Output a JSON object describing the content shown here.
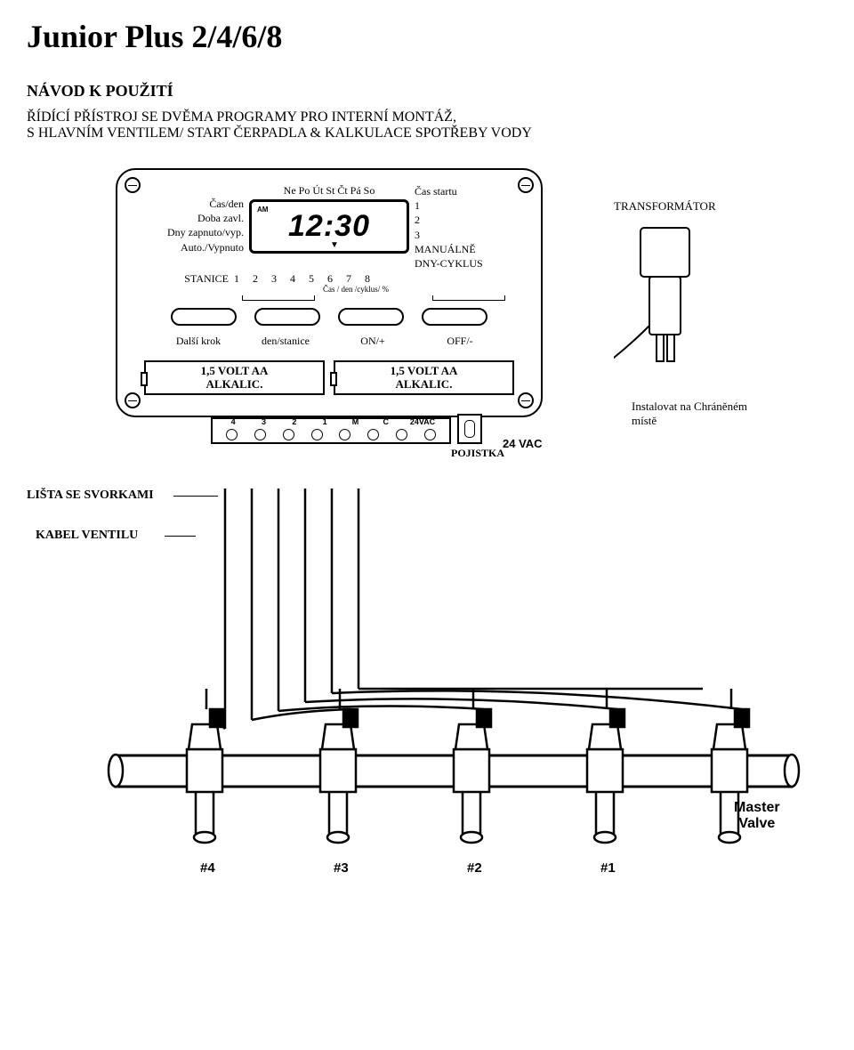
{
  "title": "Junior Plus 2/4/6/8",
  "subtitle1": "NÁVOD K POUŽITÍ",
  "subtitle2": "ŘÍDÍCÍ PŘÍSTROJ SE DVĚMA PROGRAMY PRO INTERNÍ MONTÁŽ,\nS HLAVNÍM VENTILEM/ START ČERPADLA & KALKULACE SPOTŘEBY VODY",
  "controller": {
    "days_top": "Ne Po Út St Čt Pá So",
    "left_labels": {
      "l1": "Čas/den",
      "l2": "Doba zavl.",
      "l3": "Dny  zapnuto/vyp.",
      "l4": "Auto./Vypnuto"
    },
    "right_labels": {
      "r0": "Čas startu",
      "r1": "1",
      "r2": "2",
      "r3": "3",
      "r4": "MANUÁLNĚ",
      "r5": "DNY-CYKLUS"
    },
    "lcd": {
      "am": "AM",
      "time": "12:30"
    },
    "stanice_label": "STANICE",
    "stanice_nums": "1  2  3  4  5  6  7  8",
    "cas_den_cyklus": "Čas / den /cyklus/ %",
    "buttons": {
      "b1": "Další  krok",
      "b2": "den/stanice",
      "b3": "ON/+",
      "b4": "OFF/-"
    },
    "battery_label": "1,5 VOLT AA\nALKALIC.",
    "terminals": {
      "t1": "4",
      "t2": "3",
      "t3": "2",
      "t4": "1",
      "t5": "M",
      "t6": "C",
      "t7": "24VAC"
    },
    "fuse_label": "POJISTKA"
  },
  "transformer_label": "TRANSFORMÁTOR",
  "vac24": "24 VAC",
  "install_note": "Instalovat na Chráněném místě",
  "lista_label": "LIŠTA SE SVORKAMI",
  "kabel_label": "KABEL VENTILU",
  "valves": {
    "v1": "#4",
    "v2": "#3",
    "v3": "#2",
    "v4": "#1",
    "master": "Master\nValve"
  },
  "colors": {
    "stroke": "#000000",
    "bg": "#ffffff"
  }
}
